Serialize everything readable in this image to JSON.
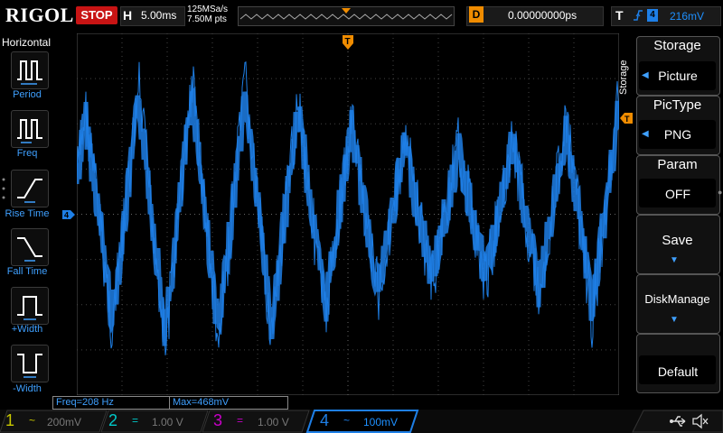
{
  "header": {
    "logo": "RIGOL",
    "run_state": "STOP",
    "horizontal_label": "H",
    "timebase": "5.00ms",
    "sample_rate": "125MSa/s",
    "memory_depth": "7.50M pts",
    "delay_label": "D",
    "delay_value": "0.00000000ps",
    "trigger_label": "T",
    "trigger_source": "4",
    "trigger_level": "216mV"
  },
  "left_menu": {
    "title": "Horizontal",
    "items": [
      {
        "label": "Period",
        "icon": "period-icon"
      },
      {
        "label": "Freq",
        "icon": "freq-icon"
      },
      {
        "label": "Rise Time",
        "icon": "rise-time-icon"
      },
      {
        "label": "Fall Time",
        "icon": "fall-time-icon"
      },
      {
        "label": "+Width",
        "icon": "positive-width-icon"
      },
      {
        "label": "-Width",
        "icon": "negative-width-icon"
      }
    ]
  },
  "right_menu": {
    "vertical_tab": "Storage",
    "items": [
      {
        "title": "Storage",
        "value": "Picture"
      },
      {
        "title": "PicType",
        "value": "PNG"
      },
      {
        "title": "Param",
        "value": "OFF"
      },
      {
        "title": "Save",
        "value": ""
      },
      {
        "title": "DiskManage",
        "value": ""
      },
      {
        "title": "",
        "value": "Default"
      }
    ]
  },
  "markers": {
    "trigger_position": "T",
    "channel_marker": "4"
  },
  "readouts": {
    "freq": "Freq=208 Hz",
    "max": "Max=468mV"
  },
  "channels": [
    {
      "num": "1",
      "coupling": "~",
      "scale": "200mV",
      "color": "#c8c800",
      "active": false
    },
    {
      "num": "2",
      "coupling": "=",
      "scale": "1.00 V",
      "color": "#00c8c8",
      "active": false
    },
    {
      "num": "3",
      "coupling": "=",
      "scale": "1.00 V",
      "color": "#c800c8",
      "active": false
    },
    {
      "num": "4",
      "coupling": "~",
      "scale": "100mV",
      "color": "#1e7fe6",
      "active": true
    }
  ],
  "status_icons": [
    "usb-icon",
    "mute-icon"
  ],
  "colors": {
    "trace": "#1e7fe6",
    "accent_orange": "#f08c00",
    "stop_red": "#c81414"
  }
}
